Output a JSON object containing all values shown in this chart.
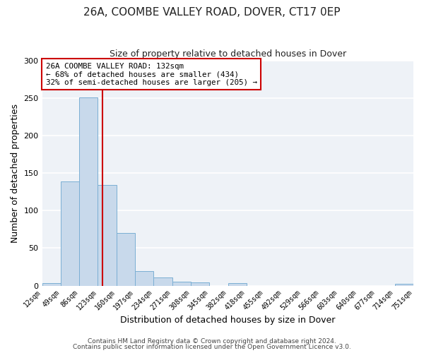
{
  "title": "26A, COOMBE VALLEY ROAD, DOVER, CT17 0EP",
  "subtitle": "Size of property relative to detached houses in Dover",
  "xlabel": "Distribution of detached houses by size in Dover",
  "ylabel": "Number of detached properties",
  "bin_edges": [
    12,
    49,
    86,
    123,
    160,
    197,
    234,
    271,
    308,
    345,
    382,
    418,
    455,
    492,
    529,
    566,
    603,
    640,
    677,
    714,
    751
  ],
  "bin_labels": [
    "12sqm",
    "49sqm",
    "86sqm",
    "123sqm",
    "160sqm",
    "197sqm",
    "234sqm",
    "271sqm",
    "308sqm",
    "345sqm",
    "382sqm",
    "418sqm",
    "455sqm",
    "492sqm",
    "529sqm",
    "566sqm",
    "603sqm",
    "640sqm",
    "677sqm",
    "714sqm",
    "751sqm"
  ],
  "counts": [
    3,
    139,
    251,
    134,
    70,
    19,
    11,
    5,
    4,
    0,
    3,
    0,
    0,
    0,
    0,
    0,
    0,
    0,
    0,
    2
  ],
  "bar_color": "#c8d9eb",
  "bar_edge_color": "#7bafd4",
  "vline_x": 132,
  "vline_color": "#cc0000",
  "annotation_text": "26A COOMBE VALLEY ROAD: 132sqm\n← 68% of detached houses are smaller (434)\n32% of semi-detached houses are larger (205) →",
  "annotation_box_color": "#ffffff",
  "annotation_box_edge_color": "#cc0000",
  "footer_line1": "Contains HM Land Registry data © Crown copyright and database right 2024.",
  "footer_line2": "Contains public sector information licensed under the Open Government Licence v3.0.",
  "ylim": [
    0,
    300
  ],
  "yticks": [
    0,
    50,
    100,
    150,
    200,
    250,
    300
  ],
  "background_color": "#ffffff",
  "plot_bg_color": "#eef2f7",
  "grid_color": "#ffffff",
  "title_fontsize": 11,
  "subtitle_fontsize": 9
}
